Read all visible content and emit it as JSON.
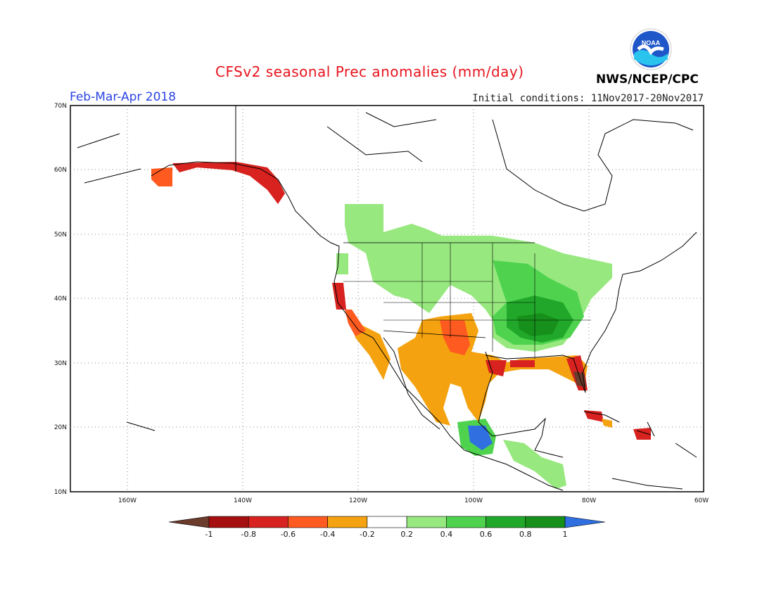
{
  "title": "CFSv2 seasonal Prec anomalies (mm/day)",
  "period": "Feb-Mar-Apr 2018",
  "initial_conditions": "Initial conditions: 11Nov2017-20Nov2017",
  "agency": "NWS/NCEP/CPC",
  "logo": {
    "text": "NOAA",
    "icon": "noaa-logo-icon"
  },
  "map": {
    "lat_labels": [
      "70N",
      "60N",
      "50N",
      "40N",
      "30N",
      "20N",
      "10N"
    ],
    "lon_labels": [
      "160W",
      "140W",
      "120W",
      "100W",
      "80W",
      "60W"
    ],
    "lat_range": [
      10,
      70
    ],
    "lon_range": [
      -171,
      -60
    ],
    "grid": "dotted"
  },
  "colorbar": {
    "labels": [
      "-1",
      "-0.8",
      "-0.6",
      "-0.4",
      "-0.2",
      "0.2",
      "0.4",
      "0.6",
      "0.8",
      "1"
    ],
    "colors": [
      "#6b3b2c",
      "#a50f0f",
      "#d7221f",
      "#ff5a1f",
      "#f4a20f",
      "#ffffff",
      "#97e87f",
      "#4fd34f",
      "#21a82a",
      "#16901b",
      "#2f6fe0"
    ]
  }
}
